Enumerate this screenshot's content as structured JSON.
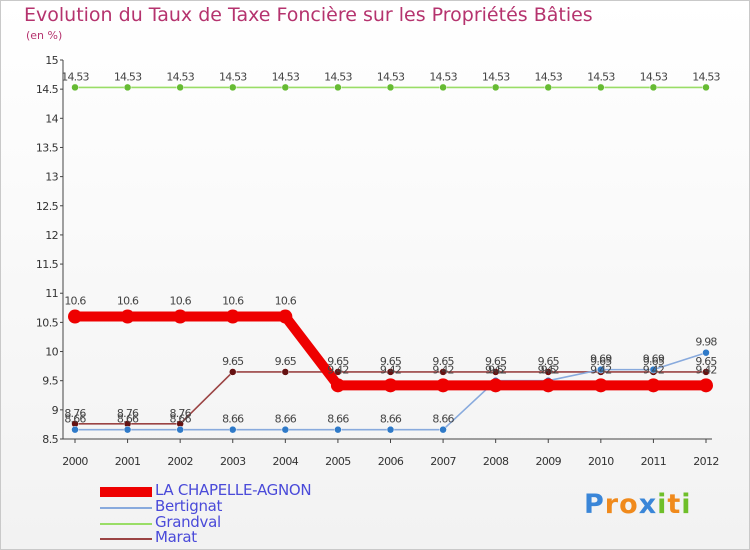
{
  "title": "Evolution du Taux de Taxe Foncière sur les Propriétés Bâties",
  "unit": "(en %)",
  "logo": {
    "text": "Proxiti",
    "letters": [
      {
        "ch": "P",
        "color": "#3a86d8"
      },
      {
        "ch": "r",
        "color": "#f08a1c"
      },
      {
        "ch": "o",
        "color": "#f08a1c"
      },
      {
        "ch": "x",
        "color": "#3a86d8"
      },
      {
        "ch": "i",
        "color": "#6fbf2a"
      },
      {
        "ch": "t",
        "color": "#f08a1c"
      },
      {
        "ch": "i",
        "color": "#6fbf2a"
      }
    ]
  },
  "chart_data": {
    "type": "line",
    "title": "Evolution du Taux de Taxe Foncière sur les Propriétés Bâties",
    "ylabel": "(en %)",
    "xlabel": "",
    "categories": [
      "2000",
      "2001",
      "2002",
      "2003",
      "2004",
      "2005",
      "2006",
      "2007",
      "2008",
      "2009",
      "2010",
      "2011",
      "2012"
    ],
    "ylim": [
      8.5,
      15
    ],
    "yticks": [
      "8.5",
      "9",
      "9.5",
      "10",
      "10.5",
      "11",
      "11.5",
      "12",
      "12.5",
      "13",
      "13.5",
      "14",
      "14.5",
      "15"
    ],
    "grid": false,
    "legend_position": "bottom-left",
    "series": [
      {
        "name": "Grandval",
        "color": "#99dd66",
        "marker": "#66bb33",
        "values": [
          14.53,
          14.53,
          14.53,
          14.53,
          14.53,
          14.53,
          14.53,
          14.53,
          14.53,
          14.53,
          14.53,
          14.53,
          14.53
        ],
        "labels": [
          "14.53",
          "14.53",
          "14.53",
          "14.53",
          "14.53",
          "14.53",
          "14.53",
          "14.53",
          "14.53",
          "14.53",
          "14.53",
          "14.53",
          "14.53"
        ]
      },
      {
        "name": "Marat",
        "color": "#9b4444",
        "marker": "#661111",
        "values": [
          8.76,
          8.76,
          8.76,
          9.65,
          9.65,
          9.65,
          9.65,
          9.65,
          9.65,
          9.65,
          9.65,
          9.65,
          9.65
        ],
        "labels": [
          "8.76",
          "8.76",
          "8.76",
          "9.65",
          "9.65",
          "9.65",
          "9.65",
          "9.65",
          "9.65",
          "9.65",
          "9.65",
          "9.65",
          "9.65"
        ]
      },
      {
        "name": "Bertignat",
        "color": "#88aadd",
        "marker": "#2f7ac8",
        "values": [
          8.66,
          8.66,
          8.66,
          8.66,
          8.66,
          8.66,
          8.66,
          8.66,
          9.5,
          9.5,
          9.69,
          9.69,
          9.98
        ],
        "labels": [
          "8.66",
          "8.66",
          "8.66",
          "8.66",
          "8.66",
          "8.66",
          "8.66",
          "8.66",
          "9.5",
          "9.5",
          "9.69",
          "9.69",
          "9.98"
        ]
      },
      {
        "name": "LA CHAPELLE-AGNON",
        "color": "#ee0000",
        "marker": "#ee0000",
        "values": [
          10.6,
          10.6,
          10.6,
          10.6,
          10.6,
          9.42,
          9.42,
          9.42,
          9.42,
          9.42,
          9.42,
          9.42,
          9.42
        ],
        "labels": [
          "10.6",
          "10.6",
          "10.6",
          "10.6",
          "10.6",
          "9.42",
          "9.42",
          "9.42",
          "9.42",
          "9.42",
          "9.42",
          "9.42",
          "9.42"
        ]
      }
    ],
    "legend": [
      "LA CHAPELLE-AGNON",
      "Bertignat",
      "Grandval",
      "Marat"
    ]
  }
}
